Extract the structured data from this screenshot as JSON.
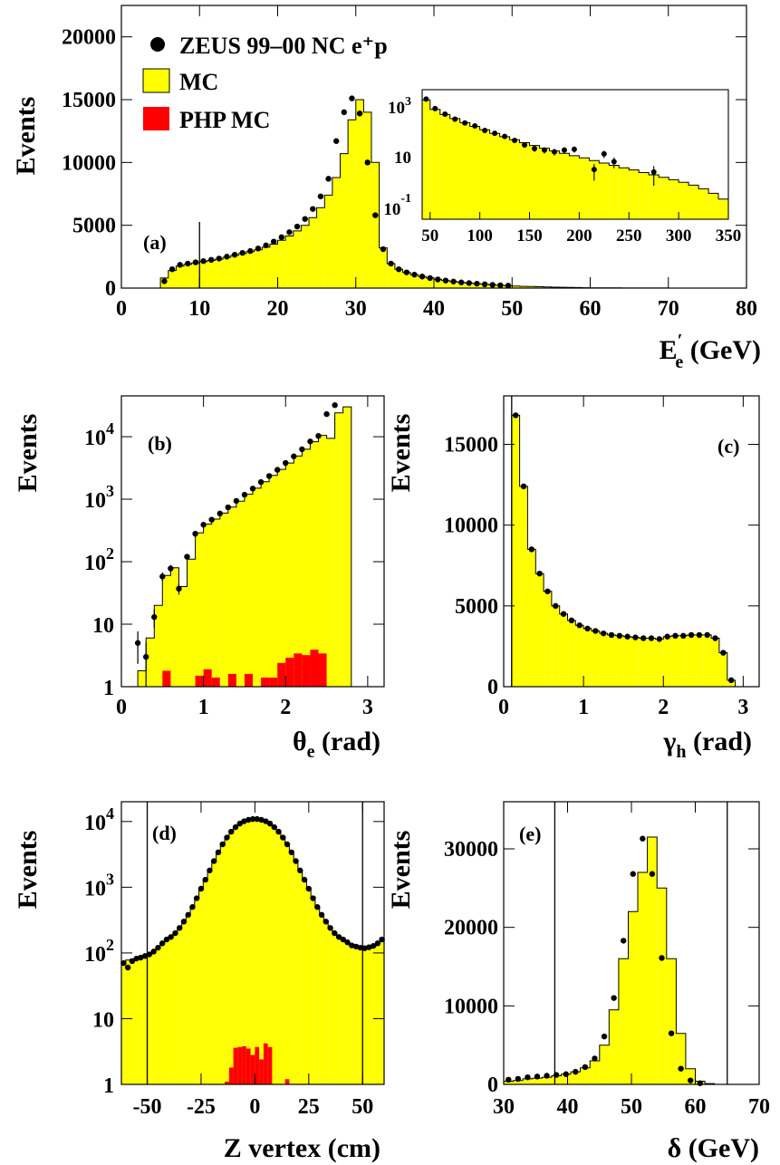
{
  "legend": {
    "data_label": "ZEUS 99–00 NC e⁺p",
    "mc_label": "MC",
    "php_label": "PHP MC"
  },
  "colors": {
    "mc": "#ffff00",
    "php": "#ff0000",
    "data": "#000000"
  },
  "chart_data": [
    {
      "id": "a",
      "panel_label": "(a)",
      "type": "bar",
      "xlabel": "E′e (GeV)",
      "ylabel": "Events",
      "xlim": [
        0,
        80
      ],
      "ylim": [
        0,
        22500
      ],
      "x_ticks": [
        "0",
        "10",
        "20",
        "30",
        "40",
        "50",
        "60",
        "70",
        "80"
      ],
      "y_ticks": [
        "0",
        "5000",
        "10000",
        "15000",
        "20000"
      ],
      "cut_lines": [
        10
      ],
      "bin_edges": [
        0,
        1,
        2,
        3,
        4,
        5,
        6,
        7,
        8,
        9,
        10,
        11,
        12,
        13,
        14,
        15,
        16,
        17,
        18,
        19,
        20,
        21,
        22,
        23,
        24,
        25,
        26,
        27,
        28,
        29,
        30,
        31,
        32,
        33,
        34,
        35,
        36,
        37,
        38,
        39,
        40,
        41,
        42,
        43,
        44,
        45,
        46,
        47,
        48,
        49,
        50,
        51,
        52,
        53,
        54,
        55,
        56,
        57,
        58,
        59,
        60,
        62,
        64,
        66,
        68,
        70,
        72,
        74,
        76,
        78,
        80
      ],
      "mc": [
        0,
        0,
        0,
        0,
        0,
        800,
        1400,
        1750,
        1900,
        2000,
        2100,
        2200,
        2300,
        2450,
        2600,
        2750,
        2900,
        3050,
        3250,
        3500,
        3800,
        4150,
        4550,
        5000,
        5600,
        6400,
        7400,
        8800,
        10700,
        13400,
        15000,
        14000,
        10000,
        3200,
        1950,
        1500,
        1250,
        1070,
        920,
        800,
        690,
        600,
        520,
        450,
        400,
        350,
        300,
        255,
        220,
        190,
        165,
        140,
        120,
        105,
        90,
        75,
        62,
        50,
        40,
        32,
        25,
        15,
        10,
        6,
        4,
        2,
        1,
        0,
        0,
        0
      ],
      "data_points": {
        "x": [
          5.5,
          6.5,
          7.5,
          8.5,
          9.5,
          10.5,
          11.5,
          12.5,
          13.5,
          14.5,
          15.5,
          16.5,
          17.5,
          18.5,
          19.5,
          20.5,
          21.5,
          22.5,
          23.5,
          24.5,
          25.5,
          26.5,
          27.5,
          28.5,
          29.5,
          30.5,
          31.5,
          32.5,
          33.5,
          34.5,
          35.5,
          36.5,
          37.5,
          38.5,
          39.5,
          40.5,
          41.5,
          42.5,
          43.5,
          44.5,
          45.5,
          46.5,
          47.5,
          48.5,
          49.5
        ],
        "y": [
          550,
          1500,
          1850,
          1950,
          2050,
          2150,
          2250,
          2350,
          2500,
          2650,
          2800,
          2950,
          3150,
          3400,
          3700,
          4050,
          4450,
          4900,
          5500,
          6300,
          7300,
          8700,
          11700,
          14000,
          15100,
          13900,
          10000,
          5800,
          3100,
          1950,
          1500,
          1250,
          1070,
          920,
          800,
          690,
          600,
          520,
          450,
          400,
          350,
          300,
          255,
          220,
          190
        ]
      },
      "inset": {
        "type": "bar",
        "log_y": true,
        "xlim": [
          42,
          350
        ],
        "ylim": [
          0.03,
          3000
        ],
        "x_ticks": [
          "50",
          "100",
          "150",
          "200",
          "250",
          "300",
          "350"
        ],
        "bin_edges": [
          42,
          50,
          60,
          70,
          80,
          90,
          100,
          110,
          120,
          130,
          140,
          150,
          160,
          170,
          180,
          190,
          200,
          210,
          220,
          230,
          240,
          250,
          260,
          270,
          280,
          290,
          300,
          310,
          320,
          330,
          340,
          350
        ],
        "mc": [
          1200,
          520,
          330,
          230,
          160,
          115,
          85,
          62,
          46,
          35,
          27,
          21,
          16.5,
          13,
          10.5,
          8.5,
          7,
          5.5,
          4.4,
          3.6,
          2.9,
          2.4,
          1.9,
          1.55,
          1.25,
          1.0,
          0.8,
          0.62,
          0.45,
          0.3,
          0.18
        ],
        "data_points": {
          "x": [
            46,
            55,
            65,
            75,
            85,
            95,
            105,
            115,
            125,
            135,
            145,
            155,
            165,
            175,
            185,
            195,
            215,
            225,
            235,
            275
          ],
          "y": [
            1300,
            560,
            340,
            220,
            155,
            120,
            80,
            62,
            47,
            33,
            22,
            16,
            14,
            12,
            14,
            15,
            2.5,
            10,
            5,
            2
          ]
        }
      }
    },
    {
      "id": "b",
      "panel_label": "(b)",
      "type": "bar",
      "log_y": true,
      "xlabel": "θe (rad)",
      "ylabel": "Events",
      "xlim": [
        0,
        3.2
      ],
      "ylim": [
        1,
        45000
      ],
      "x_ticks": [
        "0",
        "1",
        "2",
        "3"
      ],
      "y_ticks": [
        "1",
        "10",
        "10²",
        "10³",
        "10⁴"
      ],
      "bin_edges": [
        0,
        0.1,
        0.2,
        0.3,
        0.4,
        0.5,
        0.6,
        0.7,
        0.8,
        0.9,
        1.0,
        1.1,
        1.2,
        1.3,
        1.4,
        1.5,
        1.6,
        1.7,
        1.8,
        1.9,
        2.0,
        2.1,
        2.2,
        2.3,
        2.4,
        2.5,
        2.6,
        2.7,
        2.8,
        2.9,
        3.0,
        3.1,
        3.2
      ],
      "mc": [
        0,
        0,
        1.8,
        6,
        20,
        60,
        80,
        40,
        110,
        290,
        400,
        480,
        600,
        750,
        930,
        1200,
        1500,
        1900,
        2400,
        3000,
        3800,
        4900,
        6300,
        8300,
        10500,
        9400,
        24000,
        30000,
        0,
        0,
        0,
        0
      ],
      "php": [
        0,
        0,
        0,
        0,
        0,
        1.8,
        0,
        0,
        0,
        1.5,
        1.9,
        1.4,
        0,
        1.6,
        0,
        1.6,
        0,
        1.4,
        1.4,
        2.4,
        2.9,
        3.4,
        3.2,
        3.9,
        3.4,
        1,
        0,
        0,
        0,
        0,
        0,
        0
      ],
      "data_points": {
        "x": [
          0.2,
          0.3,
          0.4,
          0.5,
          0.6,
          0.7,
          0.8,
          0.9,
          1.0,
          1.1,
          1.2,
          1.3,
          1.4,
          1.5,
          1.6,
          1.7,
          1.8,
          1.9,
          2.0,
          2.1,
          2.2,
          2.3,
          2.4,
          2.5,
          2.6
        ],
        "y": [
          5,
          3,
          13,
          58,
          78,
          37,
          120,
          280,
          390,
          470,
          590,
          740,
          940,
          1180,
          1480,
          1880,
          2350,
          2950,
          3800,
          4850,
          6300,
          8400,
          10300,
          23000,
          32000
        ]
      }
    },
    {
      "id": "c",
      "panel_label": "(c)",
      "type": "bar",
      "xlabel": "γh (rad)",
      "ylabel": "Events",
      "xlim": [
        0,
        3.2
      ],
      "ylim": [
        0,
        18000
      ],
      "x_ticks": [
        "0",
        "1",
        "2",
        "3"
      ],
      "y_ticks": [
        "0",
        "5000",
        "10000",
        "15000"
      ],
      "cut_lines": [
        0.1
      ],
      "bin_edges": [
        0,
        0.1,
        0.2,
        0.3,
        0.4,
        0.5,
        0.6,
        0.7,
        0.8,
        0.9,
        1.0,
        1.1,
        1.2,
        1.3,
        1.4,
        1.5,
        1.6,
        1.7,
        1.8,
        1.9,
        2.0,
        2.1,
        2.2,
        2.3,
        2.4,
        2.5,
        2.6,
        2.7,
        2.8,
        2.9,
        3.0,
        3.1,
        3.2
      ],
      "mc": [
        0,
        16800,
        12400,
        8500,
        7000,
        5900,
        5000,
        4500,
        4100,
        3800,
        3600,
        3450,
        3300,
        3200,
        3150,
        3100,
        3050,
        3000,
        3000,
        2950,
        3100,
        3150,
        3150,
        3200,
        3200,
        3200,
        3000,
        2100,
        400,
        0,
        0,
        0
      ],
      "data_points": {
        "x": [
          0.15,
          0.25,
          0.35,
          0.45,
          0.55,
          0.65,
          0.75,
          0.85,
          0.95,
          1.05,
          1.15,
          1.25,
          1.35,
          1.45,
          1.55,
          1.65,
          1.75,
          1.85,
          1.95,
          2.05,
          2.15,
          2.25,
          2.35,
          2.45,
          2.55,
          2.65,
          2.75,
          2.85
        ],
        "y": [
          16800,
          12400,
          8500,
          7000,
          5900,
          5000,
          4500,
          4100,
          3800,
          3600,
          3450,
          3300,
          3200,
          3150,
          3100,
          3050,
          3000,
          3000,
          2950,
          3100,
          3150,
          3150,
          3200,
          3200,
          3200,
          3000,
          2100,
          400
        ]
      }
    },
    {
      "id": "d",
      "panel_label": "(d)",
      "type": "bar",
      "log_y": true,
      "xlabel": "Z vertex (cm)",
      "ylabel": "Events",
      "xlim": [
        -62,
        60
      ],
      "ylim": [
        1,
        20000
      ],
      "x_ticks": [
        "-50",
        "-25",
        "0",
        "25",
        "50"
      ],
      "x_tick_values": [
        -50,
        -25,
        0,
        25,
        50
      ],
      "y_ticks": [
        "1",
        "10",
        "10²",
        "10³",
        "10⁴"
      ],
      "cut_lines": [
        -50,
        50
      ],
      "bin_edges": [
        -62,
        -60,
        -58,
        -56,
        -54,
        -52,
        -50,
        -48,
        -46,
        -44,
        -42,
        -40,
        -38,
        -36,
        -34,
        -32,
        -30,
        -28,
        -26,
        -24,
        -22,
        -20,
        -18,
        -16,
        -14,
        -12,
        -10,
        -8,
        -6,
        -4,
        -2,
        0,
        2,
        4,
        6,
        8,
        10,
        12,
        14,
        16,
        18,
        20,
        22,
        24,
        26,
        28,
        30,
        32,
        34,
        36,
        38,
        40,
        42,
        44,
        46,
        48,
        50,
        52,
        54,
        56,
        58,
        60
      ],
      "mc": [
        75,
        78,
        80,
        85,
        88,
        90,
        95,
        105,
        120,
        140,
        160,
        175,
        200,
        240,
        300,
        380,
        500,
        680,
        950,
        1300,
        1800,
        2500,
        3400,
        4500,
        5700,
        7000,
        8200,
        9300,
        10100,
        10600,
        10900,
        10900,
        10600,
        10100,
        9300,
        8200,
        7000,
        5700,
        4500,
        3400,
        2500,
        1800,
        1300,
        950,
        680,
        500,
        380,
        300,
        240,
        200,
        175,
        160,
        145,
        130,
        125,
        120,
        115,
        120,
        125,
        140,
        170
      ],
      "php": [
        0,
        0,
        0,
        0,
        0,
        0,
        0,
        0,
        0,
        0,
        0,
        0,
        0,
        0,
        0,
        0,
        0,
        0,
        0,
        0,
        0,
        0,
        0,
        0,
        1.1,
        1.8,
        3.6,
        3.7,
        3.8,
        3.5,
        2.8,
        3.7,
        2.4,
        4.2,
        3.7,
        1,
        0,
        0,
        1.2,
        0,
        0,
        0,
        0,
        0,
        0,
        0,
        0,
        0,
        0,
        0,
        0,
        0,
        0,
        0,
        0,
        0,
        0,
        0,
        0,
        0,
        0
      ],
      "data_points": {
        "x": [
          -61,
          -59,
          -57,
          -55,
          -53,
          -51,
          -49,
          -47,
          -45,
          -43,
          -41,
          -39,
          -37,
          -35,
          -33,
          -31,
          -29,
          -27,
          -25,
          -23,
          -21,
          -19,
          -17,
          -15,
          -13,
          -11,
          -9,
          -7,
          -5,
          -3,
          -1,
          1,
          3,
          5,
          7,
          9,
          11,
          13,
          15,
          17,
          19,
          21,
          23,
          25,
          27,
          29,
          31,
          33,
          35,
          37,
          39,
          41,
          43,
          45,
          47,
          49,
          51,
          53,
          55,
          57,
          59
        ],
        "y": [
          70,
          60,
          75,
          82,
          85,
          90,
          95,
          105,
          120,
          140,
          160,
          175,
          200,
          240,
          300,
          380,
          500,
          680,
          950,
          1300,
          1800,
          2500,
          3400,
          4500,
          5700,
          7000,
          8200,
          9300,
          10100,
          10600,
          10900,
          10900,
          10600,
          10100,
          9300,
          8200,
          7000,
          5700,
          4500,
          3400,
          2500,
          1800,
          1300,
          950,
          680,
          500,
          380,
          300,
          240,
          200,
          175,
          160,
          145,
          130,
          125,
          120,
          118,
          122,
          128,
          140,
          160
        ]
      }
    },
    {
      "id": "e",
      "panel_label": "(e)",
      "type": "bar",
      "xlabel": "δ (GeV)",
      "ylabel": "Events",
      "xlim": [
        30,
        70
      ],
      "ylim": [
        0,
        36000
      ],
      "x_ticks": [
        "30",
        "40",
        "50",
        "60",
        "70"
      ],
      "y_ticks": [
        "0",
        "10000",
        "20000",
        "30000"
      ],
      "cut_lines": [
        38,
        65
      ],
      "bin_edges": [
        30,
        31.5,
        33,
        34.5,
        36,
        37.5,
        39,
        40.5,
        42,
        43.5,
        45,
        46.5,
        48,
        49.5,
        51,
        52.5,
        54,
        55.5,
        57,
        58.5,
        60,
        61.5,
        63,
        64.5,
        66,
        67.5,
        69,
        70
      ],
      "mc": [
        400,
        500,
        700,
        800,
        900,
        1100,
        1300,
        1600,
        2100,
        3000,
        5000,
        9500,
        16000,
        22000,
        27000,
        31500,
        25000,
        16000,
        6500,
        2000,
        400,
        100,
        0,
        0,
        0,
        0,
        0
      ],
      "data_points": {
        "x": [
          30.75,
          32.25,
          33.75,
          35.25,
          36.75,
          38.25,
          39.75,
          41.25,
          42.75,
          44.25,
          45.75,
          47.25,
          48.75,
          50.25,
          51.75,
          53.25,
          54.75,
          56.25,
          57.75,
          59.25,
          60.75
        ],
        "y": [
          600,
          700,
          900,
          1000,
          1100,
          1200,
          1300,
          1600,
          2200,
          3300,
          6100,
          11000,
          18300,
          26800,
          31300,
          26800,
          16100,
          6500,
          2000,
          500,
          150
        ]
      }
    }
  ]
}
